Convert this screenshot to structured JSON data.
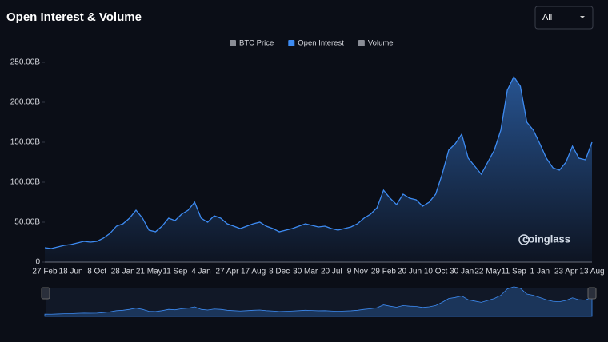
{
  "header": {
    "title": "Open Interest & Volume",
    "range": "All"
  },
  "watermark": "coinglass",
  "chart_data": {
    "type": "area",
    "categories": [
      "27 Feb",
      null,
      null,
      null,
      "18 Jun",
      null,
      null,
      null,
      "8 Oct",
      null,
      null,
      null,
      "28 Jan",
      null,
      null,
      null,
      "21 May",
      null,
      null,
      null,
      "11 Sep",
      null,
      null,
      null,
      "4 Jan",
      null,
      null,
      null,
      "27 Apr",
      null,
      null,
      null,
      "17 Aug",
      null,
      null,
      null,
      "8 Dec",
      null,
      null,
      null,
      "30 Mar",
      null,
      null,
      null,
      "20 Jul",
      null,
      null,
      null,
      "9 Nov",
      null,
      null,
      null,
      "29 Feb",
      null,
      null,
      null,
      "20 Jun",
      null,
      null,
      null,
      "10 Oct",
      null,
      null,
      null,
      "30 Jan",
      null,
      null,
      null,
      "22 May",
      null,
      null,
      null,
      "11 Sep",
      null,
      null,
      null,
      "1 Jan",
      null,
      null,
      null,
      "23 Apr",
      null,
      null,
      null,
      "13 Aug"
    ],
    "series": [
      {
        "name": "BTC Price",
        "color": "#8a8d96",
        "visible": false
      },
      {
        "name": "Open Interest",
        "color": "#3d8bf2",
        "visible": true,
        "values": [
          18,
          17,
          19,
          21,
          22,
          24,
          26,
          25,
          26,
          30,
          36,
          45,
          48,
          55,
          65,
          55,
          40,
          38,
          45,
          55,
          52,
          60,
          65,
          75,
          55,
          50,
          58,
          55,
          48,
          45,
          42,
          45,
          48,
          50,
          45,
          42,
          38,
          40,
          42,
          45,
          48,
          46,
          44,
          45,
          42,
          40,
          42,
          44,
          48,
          55,
          60,
          68,
          90,
          80,
          72,
          85,
          80,
          78,
          70,
          75,
          85,
          110,
          140,
          148,
          160,
          130,
          120,
          110,
          125,
          140,
          165,
          215,
          232,
          220,
          175,
          165,
          148,
          130,
          118,
          115,
          125,
          145,
          130,
          128,
          150
        ]
      },
      {
        "name": "Volume",
        "color": "#8a8d96",
        "visible": false
      }
    ],
    "ylim": [
      0,
      250
    ],
    "yticks": [
      0,
      {
        "value": 50,
        "label": "50.00B"
      },
      {
        "value": 100,
        "label": "100.00B"
      },
      {
        "value": 150,
        "label": "150.00B"
      },
      {
        "value": 200,
        "label": "200.00B"
      },
      {
        "value": 250,
        "label": "250.00B"
      }
    ],
    "grid": false
  }
}
